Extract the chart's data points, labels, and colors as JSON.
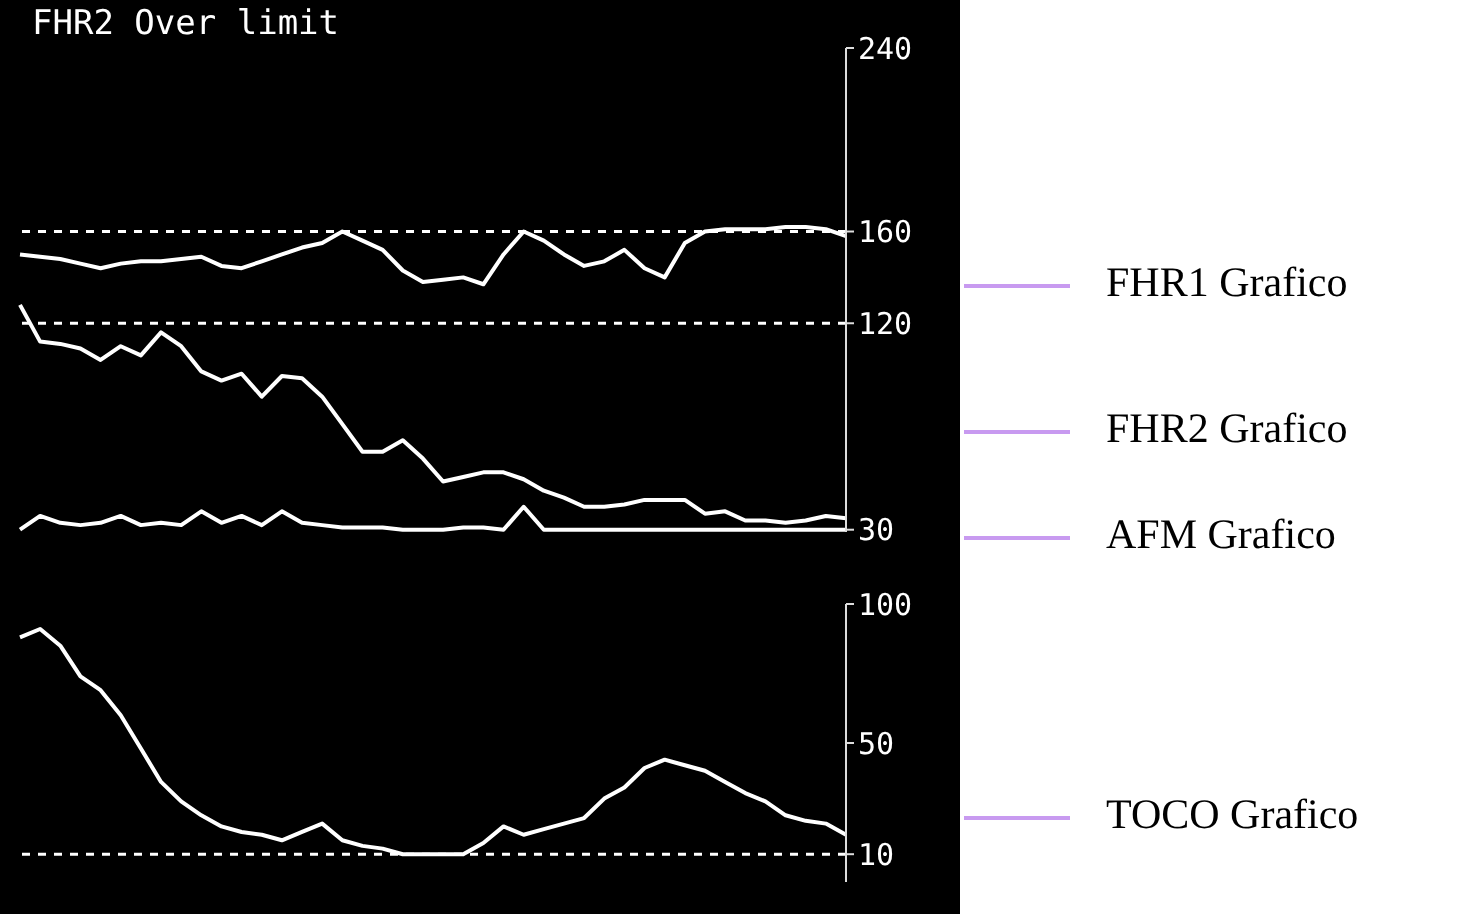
{
  "chart_data": [
    {
      "type": "line",
      "title": "FHR2 Over limit",
      "categories": [
        null,
        null,
        null,
        null,
        null,
        null,
        null,
        null,
        null,
        null,
        null,
        null,
        null,
        null,
        null,
        null,
        null,
        null,
        null,
        null,
        null,
        null,
        null,
        null,
        null,
        null,
        null,
        null,
        null,
        null,
        null,
        null,
        null,
        null,
        null,
        null,
        null,
        null,
        null,
        null,
        null,
        null
      ],
      "series": [
        {
          "name": "FHR1 Grafico",
          "color": "#ffffff",
          "values": [
            150,
            149,
            148,
            146,
            144,
            146,
            147,
            147,
            148,
            149,
            145,
            144,
            147,
            150,
            153,
            155,
            160,
            156,
            152,
            143,
            138,
            139,
            140,
            137,
            150,
            160,
            156,
            150,
            145,
            147,
            152,
            144,
            140,
            155,
            160,
            161,
            161,
            161,
            162,
            162,
            161,
            158
          ]
        },
        {
          "name": "FHR2 Grafico",
          "color": "#ffffff",
          "values": [
            128,
            112,
            111,
            109,
            104,
            110,
            106,
            116,
            110,
            99,
            95,
            98,
            88,
            97,
            96,
            88,
            76,
            64,
            64,
            69,
            61,
            51,
            53,
            55,
            55,
            52,
            47,
            44,
            40,
            40,
            41,
            43,
            43,
            43,
            37,
            38,
            34,
            34,
            33,
            34,
            36,
            35
          ]
        },
        {
          "name": "AFM Grafico",
          "color": "#ffffff",
          "values": [
            30,
            36,
            33,
            32,
            33,
            36,
            32,
            33,
            32,
            38,
            33,
            36,
            32,
            38,
            33,
            32,
            31,
            31,
            31,
            30,
            30,
            30,
            31,
            31,
            30,
            40,
            30,
            30,
            30,
            30,
            30,
            30,
            30,
            30,
            30,
            30,
            30,
            30,
            30,
            30,
            30,
            30
          ]
        }
      ],
      "ylim": [
        29,
        240
      ],
      "yticks": [
        30,
        120,
        160,
        240
      ],
      "tick_labels": "y",
      "marker": "none",
      "line_style": "solid",
      "ref_lines": [
        {
          "axis": "y",
          "value": 160,
          "color": "#ffffff",
          "line_style": "dashed"
        },
        {
          "axis": "y",
          "value": 120,
          "color": "#ffffff",
          "line_style": "dashed"
        }
      ]
    },
    {
      "type": "line",
      "categories": [
        null,
        null,
        null,
        null,
        null,
        null,
        null,
        null,
        null,
        null,
        null,
        null,
        null,
        null,
        null,
        null,
        null,
        null,
        null,
        null,
        null,
        null,
        null,
        null,
        null,
        null,
        null,
        null,
        null,
        null,
        null,
        null,
        null,
        null,
        null,
        null,
        null,
        null,
        null,
        null,
        null,
        null
      ],
      "series": [
        {
          "name": "TOCO Grafico",
          "color": "#ffffff",
          "values": [
            88,
            91,
            85,
            74,
            69,
            60,
            48,
            36,
            29,
            24,
            20,
            18,
            17,
            15,
            18,
            21,
            15,
            13,
            12,
            10,
            10,
            10,
            10,
            14,
            20,
            17,
            19,
            21,
            23,
            30,
            34,
            41,
            44,
            42,
            40,
            36,
            32,
            29,
            24,
            22,
            21,
            17
          ]
        }
      ],
      "ylim": [
        0,
        100
      ],
      "yticks": [
        10,
        50,
        100
      ],
      "tick_labels": "y",
      "marker": "none",
      "line_style": "solid",
      "ref_lines": [
        {
          "axis": "y",
          "value": 10,
          "color": "#ffffff",
          "line_style": "dashed"
        }
      ]
    }
  ]
}
